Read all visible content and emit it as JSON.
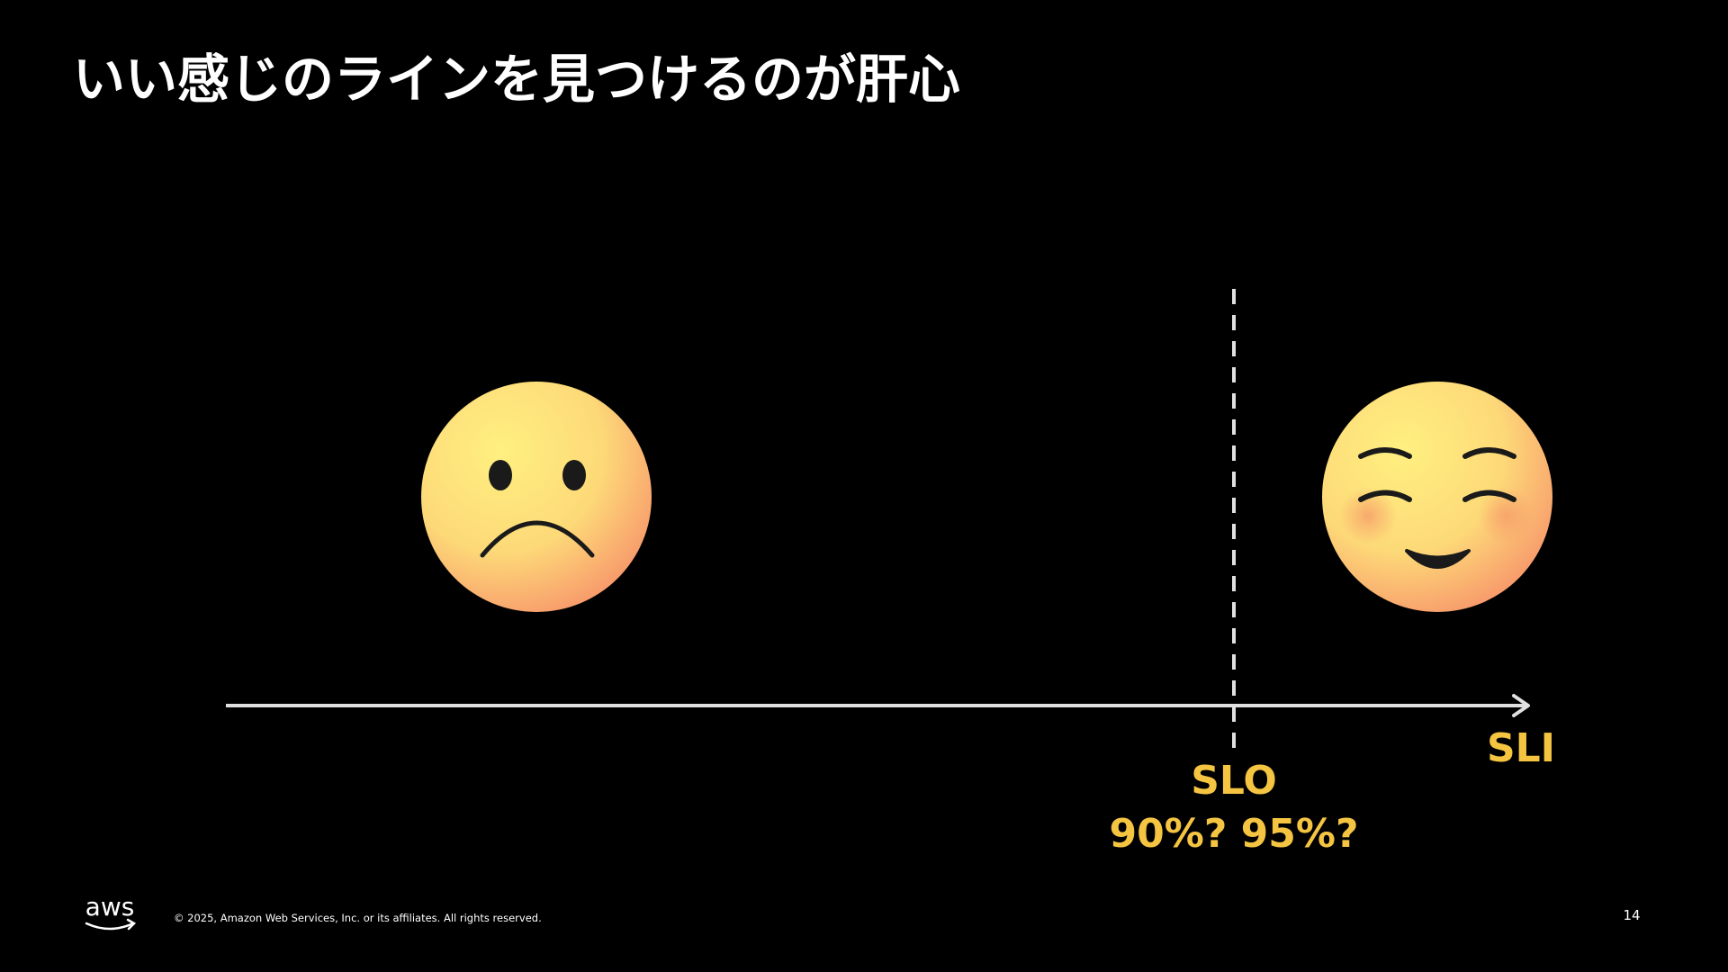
{
  "header": {
    "title": "いい感じのラインを見つけるのが肝心"
  },
  "diagram": {
    "axis_label": "SLI",
    "threshold_label": "SLO",
    "threshold_question": "90%? 95%?"
  },
  "footer": {
    "logo": "aws",
    "copyright": "© 2025, Amazon Web Services, Inc. or its affiliates. All rights reserved.",
    "page_number": "14"
  }
}
